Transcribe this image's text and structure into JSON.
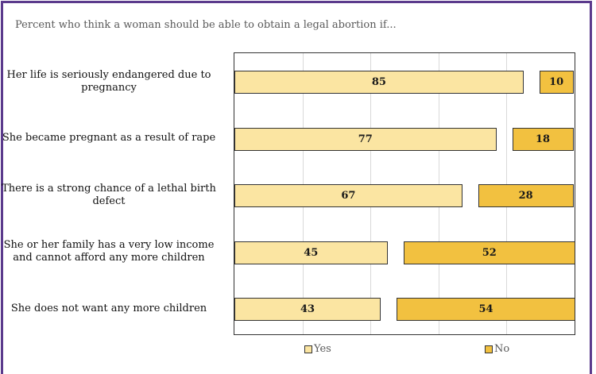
{
  "chart_data": {
    "type": "bar",
    "orientation": "horizontal",
    "stacked": true,
    "title": "Percent who think a woman should be able to obtain a legal abortion if...",
    "categories": [
      "Her life is seriously endangered due to pregnancy",
      "She became pregnant as a result of rape",
      "There is a strong chance of a lethal birth defect",
      "She or her family has a very low income and cannot afford any more children",
      "She does not want any more children"
    ],
    "series": [
      {
        "name": "Yes",
        "color": "#fbe5a2",
        "values": [
          85,
          77,
          67,
          45,
          43
        ]
      },
      {
        "name": "No",
        "color": "#f2c140",
        "values": [
          10,
          18,
          28,
          52,
          54
        ]
      }
    ],
    "xlim": [
      0,
      100
    ],
    "grid": true,
    "legend_position": "bottom"
  }
}
